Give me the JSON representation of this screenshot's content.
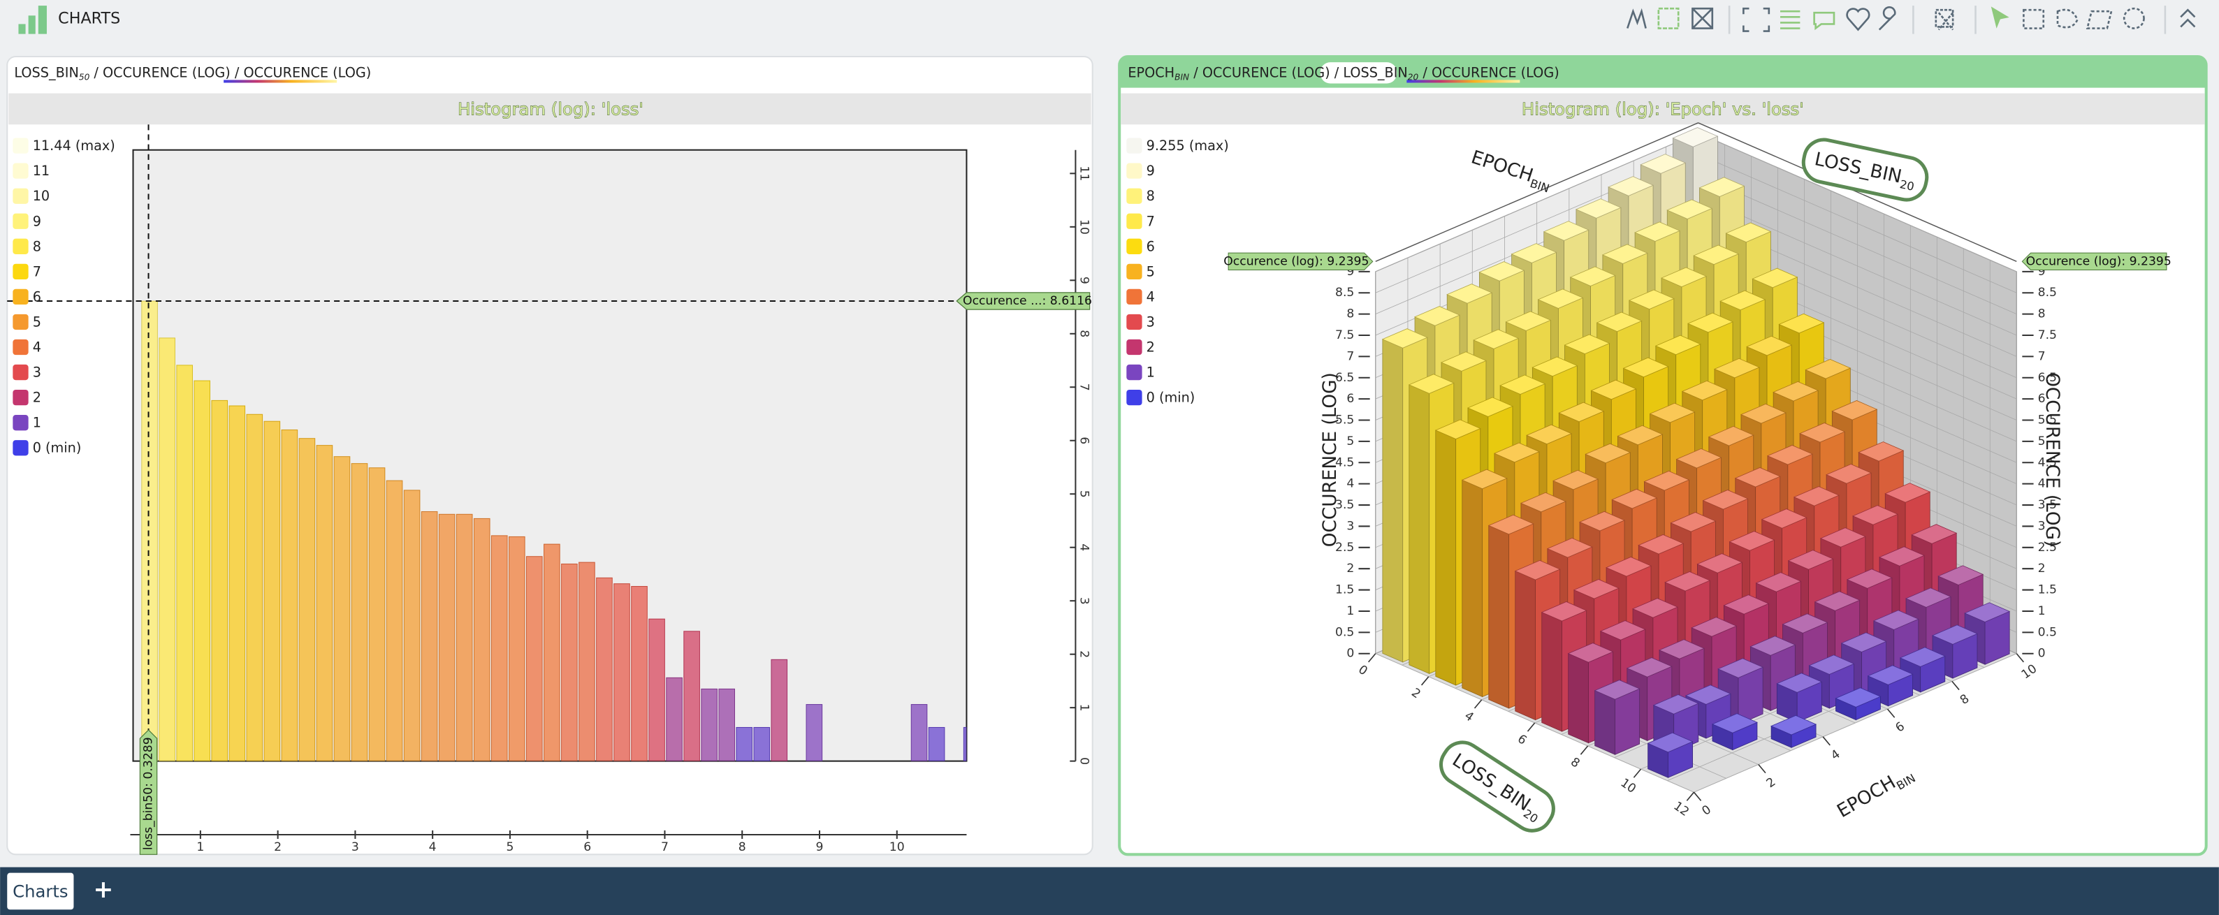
{
  "app": {
    "title": "CHARTS",
    "tabs": [
      "Charts"
    ],
    "add_tab": "+"
  },
  "chart_data": [
    {
      "type": "histogram",
      "breadcrumb": [
        {
          "text": "LOSS_BIN",
          "sub": "50"
        },
        {
          "text": "OCCURENCE (LOG)"
        },
        {
          "text": "OCCURENCE (LOG)"
        }
      ],
      "separator": " / ",
      "title": "Histogram (log): 'loss'",
      "legend": [
        {
          "value": 11.44,
          "label": "11.44 (max)",
          "color": "#fdfde6"
        },
        {
          "value": 11,
          "color": "#fffbd2"
        },
        {
          "value": 10,
          "color": "#fff6a6"
        },
        {
          "value": 9,
          "color": "#fff27a"
        },
        {
          "value": 8,
          "color": "#ffe94a"
        },
        {
          "value": 7,
          "color": "#fcd80f"
        },
        {
          "value": 6,
          "color": "#f8b21f"
        },
        {
          "value": 5,
          "color": "#f5992e"
        },
        {
          "value": 4,
          "color": "#f07438"
        },
        {
          "value": 3,
          "color": "#e34a4e"
        },
        {
          "value": 2,
          "color": "#c4366e"
        },
        {
          "value": 1,
          "color": "#7a45c0"
        },
        {
          "value": 0,
          "label": "0 (min)",
          "color": "#3f3fe8"
        }
      ],
      "bins": [
        0.23,
        0.456,
        0.682,
        0.908,
        1.134,
        1.36,
        1.586,
        1.812,
        2.038,
        2.264,
        2.49,
        2.716,
        2.942,
        3.168,
        3.394,
        3.62,
        3.846,
        4.072,
        4.298,
        4.524,
        4.75,
        4.976,
        5.202,
        5.428,
        5.654,
        5.88,
        6.106,
        6.332,
        6.558,
        6.784,
        7.01,
        7.236,
        7.462,
        7.688,
        7.914,
        8.14,
        8.366,
        8.592,
        8.818,
        9.044,
        9.27,
        9.496,
        9.722,
        9.948,
        10.174,
        10.4,
        10.626,
        10.852,
        11.078,
        11.304,
        11.53
      ],
      "counts": [
        8.61,
        7.92,
        7.41,
        7.12,
        6.75,
        6.65,
        6.49,
        6.36,
        6.2,
        6.04,
        5.91,
        5.7,
        5.57,
        5.49,
        5.25,
        5.07,
        4.67,
        4.62,
        4.62,
        4.54,
        4.22,
        4.2,
        3.83,
        4.06,
        3.69,
        3.72,
        3.43,
        3.32,
        3.27,
        2.66,
        1.56,
        2.43,
        1.35,
        1.35,
        0.63,
        0.63,
        1.9,
        0,
        1.06,
        0,
        0,
        0,
        0,
        0,
        1.06,
        0.63,
        0,
        0.63,
        0,
        0
      ],
      "xlim": [
        0.13,
        10.9
      ],
      "xticks": [
        1,
        2,
        3,
        4,
        5,
        6,
        7,
        8,
        9,
        10
      ],
      "ylim": [
        0,
        11.44
      ],
      "yticks": [
        0,
        1,
        2,
        3,
        4,
        5,
        6,
        7,
        8,
        9,
        10,
        11
      ],
      "crosshair": {
        "x": 0.3289,
        "y": 8.6116,
        "x_label": "loss_bin50: 0.3289",
        "y_label": "Occurence ...: 8.6116"
      }
    },
    {
      "type": "bar3d",
      "breadcrumb": [
        {
          "text": "EPOCH",
          "sub": "BIN"
        },
        {
          "text": "OCCURENCE (LOG)"
        },
        {
          "text": "LOSS_BIN",
          "sub": "20"
        },
        {
          "text": "OCCURENCE (LOG)"
        }
      ],
      "separator": " / ",
      "title": "Histogram (log): 'Epoch' vs. 'loss'",
      "legend": [
        {
          "value": 9.255,
          "label": "9.255 (max)",
          "color": "#f6f6f0"
        },
        {
          "value": 9,
          "color": "#fff8c8"
        },
        {
          "value": 8,
          "color": "#fff27a"
        },
        {
          "value": 7,
          "color": "#ffe94a"
        },
        {
          "value": 6,
          "color": "#fcdc10"
        },
        {
          "value": 5,
          "color": "#f8b21f"
        },
        {
          "value": 4,
          "color": "#f07438"
        },
        {
          "value": 3,
          "color": "#e34a4e"
        },
        {
          "value": 2,
          "color": "#c4366e"
        },
        {
          "value": 1,
          "color": "#7a45c0"
        },
        {
          "value": 0,
          "label": "0 (min)",
          "color": "#3f3fe8"
        }
      ],
      "axis_labels": {
        "x": {
          "text": "LOSS_BIN",
          "sub": "20"
        },
        "y": {
          "text": "EPOCH",
          "sub": "BIN"
        },
        "z": "OCCURENCE (LOG)"
      },
      "xlim": [
        0,
        12
      ],
      "xticks": [
        0,
        2,
        4,
        6,
        8,
        10,
        12
      ],
      "ylim": [
        0,
        10
      ],
      "yticks": [
        0,
        2,
        4,
        6,
        8,
        10
      ],
      "zlim": [
        0,
        9
      ],
      "zticks": [
        0,
        0.5,
        1,
        1.5,
        2,
        2.5,
        3,
        3.5,
        4,
        4.5,
        5,
        5.5,
        6,
        6.5,
        7,
        7.5,
        8,
        8.5,
        9
      ],
      "values": [
        [
          7.4,
          6.6,
          5.8,
          4.9,
          4.1,
          3.3,
          2.6,
          1.9,
          1.3,
          0,
          0.6,
          0
        ],
        [
          7.6,
          6.8,
          6.0,
          5.2,
          4.3,
          3.5,
          2.8,
          2.1,
          1.5,
          0.9,
          0,
          0
        ],
        [
          7.8,
          7.0,
          6.2,
          5.3,
          4.5,
          3.8,
          3.0,
          2.3,
          1.6,
          0.8,
          0.4,
          0
        ],
        [
          8.0,
          7.1,
          6.3,
          5.5,
          4.8,
          4.0,
          3.2,
          2.6,
          1.8,
          1.1,
          0,
          0.3
        ],
        [
          8.1,
          7.3,
          6.5,
          5.7,
          4.9,
          4.1,
          3.4,
          2.7,
          2.0,
          1.3,
          0.7,
          0
        ],
        [
          8.3,
          7.5,
          6.7,
          5.9,
          5.1,
          4.3,
          3.6,
          2.9,
          2.2,
          1.5,
          0.8,
          0.3
        ],
        [
          8.5,
          7.7,
          6.9,
          6.1,
          5.3,
          4.5,
          3.8,
          3.1,
          2.4,
          1.7,
          1.0,
          0.5
        ],
        [
          8.7,
          7.9,
          7.1,
          6.3,
          5.5,
          4.7,
          4.0,
          3.3,
          2.6,
          1.9,
          1.2,
          0.6
        ],
        [
          8.9,
          8.1,
          7.3,
          6.5,
          5.7,
          4.9,
          4.2,
          3.5,
          2.8,
          2.1,
          1.4,
          0.8
        ],
        [
          9.2,
          8.3,
          7.5,
          6.7,
          5.9,
          5.1,
          4.4,
          3.7,
          3.0,
          2.3,
          1.6,
          1.0
        ]
      ],
      "crosshair": {
        "z": 9.2395,
        "label": "Occurence (log): 9.2395"
      }
    }
  ]
}
